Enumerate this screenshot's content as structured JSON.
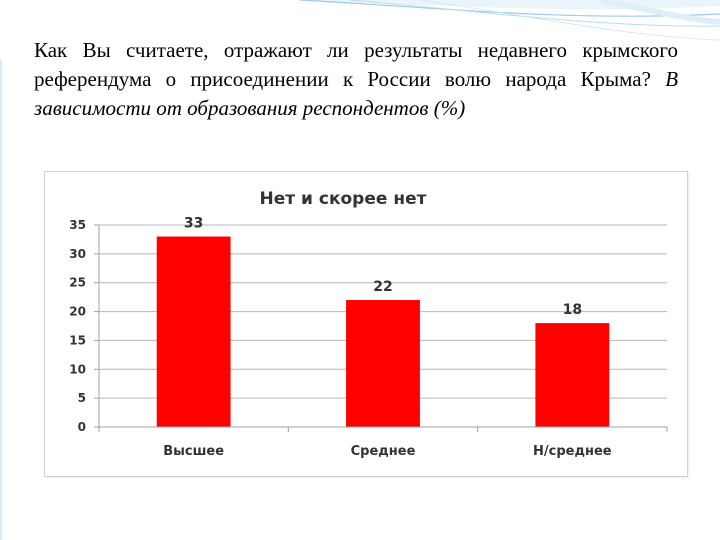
{
  "slide": {
    "question": "Как Вы считаете, отражают ли результаты недавнего крымского референдума о присоединении к России волю народа Крыма?",
    "qualifier": "В зависимости от образования респондентов (%)",
    "colors": {
      "decor_line": "#7fb7e2",
      "accent": "#4a90c9"
    }
  },
  "chart_data": {
    "type": "bar",
    "title": "Нет и скорее нет",
    "categories": [
      "Высшее",
      "Среднее",
      "Н/среднее"
    ],
    "values": [
      33,
      22,
      18
    ],
    "data_labels": [
      "33",
      "22",
      "18"
    ],
    "xlabel": "",
    "ylabel": "",
    "ylim": [
      0,
      35
    ],
    "yticks": [
      0,
      5,
      10,
      15,
      20,
      25,
      30,
      35
    ],
    "grid": true,
    "legend": "none",
    "bar_color": "#ff0000"
  }
}
